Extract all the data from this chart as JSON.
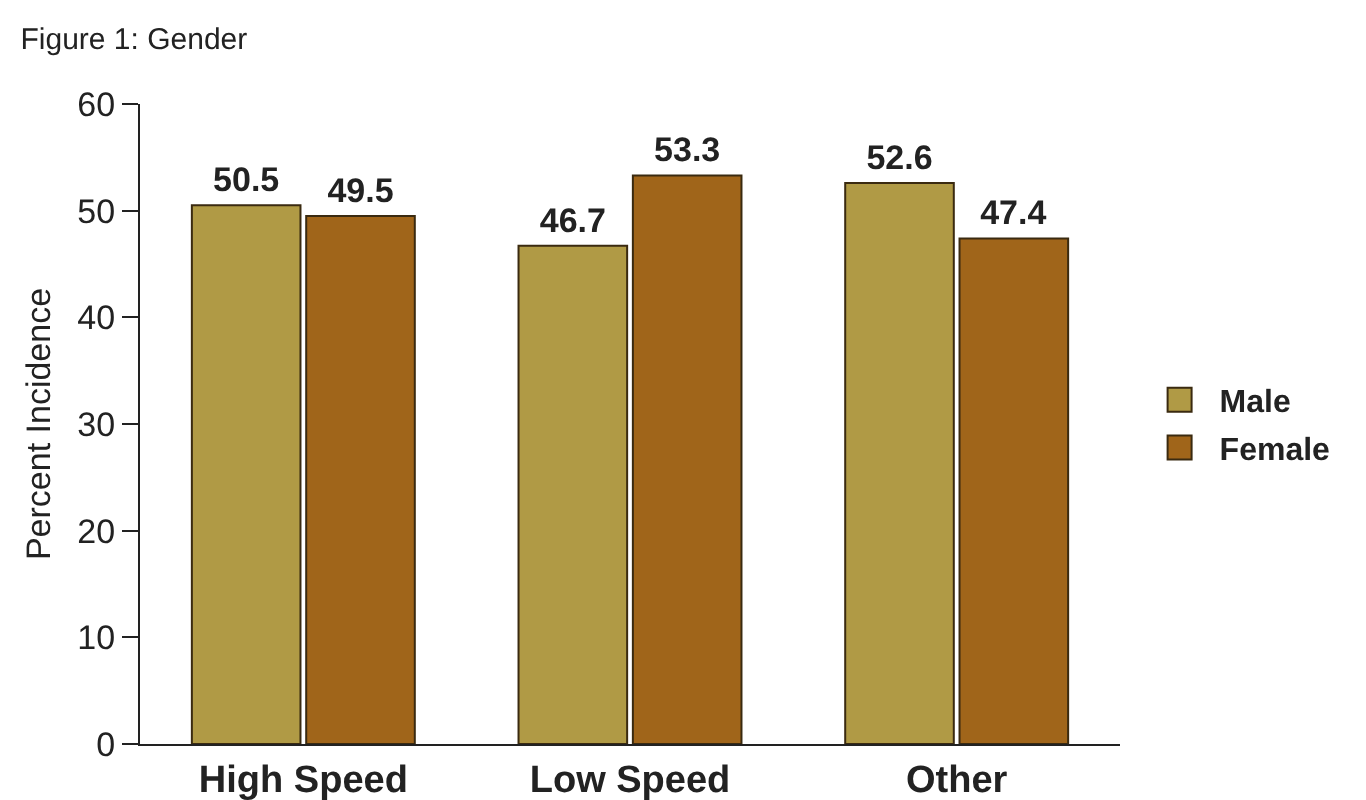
{
  "chart_data": {
    "type": "bar",
    "title": "Figure 1: Gender",
    "ylabel": "Percent Incidence",
    "categories": [
      "High Speed",
      "Low Speed",
      "Other"
    ],
    "series": [
      {
        "name": "Male",
        "color": "#b09a45",
        "values": [
          50.5,
          46.7,
          52.6
        ]
      },
      {
        "name": "Female",
        "color": "#a0651a",
        "values": [
          49.5,
          53.3,
          47.4
        ]
      }
    ],
    "ylim": [
      0,
      60
    ],
    "yticks": [
      0,
      10,
      20,
      30,
      40,
      50,
      60
    ],
    "grid": false,
    "legend": "right",
    "data_labels": true
  }
}
